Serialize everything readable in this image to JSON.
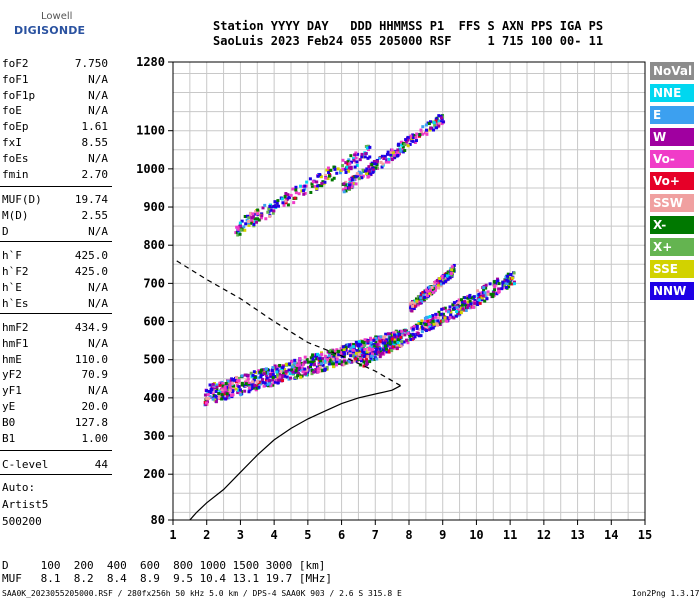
{
  "logo": {
    "line1": "Lowell",
    "line2": "DIGISONDE"
  },
  "header": {
    "line1": "Station YYYY DAY   DDD HHMMSS P1  FFS S AXN PPS IGA PS",
    "line2": "SaoLuis 2023 Feb24 055 205000 RSF     1 715 100 00- 11"
  },
  "params": [
    {
      "name": "foF2",
      "value": "7.750"
    },
    {
      "name": "foF1",
      "value": "N/A"
    },
    {
      "name": "foF1p",
      "value": "N/A"
    },
    {
      "name": "foE",
      "value": "N/A"
    },
    {
      "name": "foEp",
      "value": "1.61"
    },
    {
      "name": "fxI",
      "value": "8.55"
    },
    {
      "name": "foEs",
      "value": "N/A"
    },
    {
      "name": "fmin",
      "value": "2.70"
    },
    {
      "name": "MUF(D)",
      "value": "19.74"
    },
    {
      "name": "M(D)",
      "value": "2.55"
    },
    {
      "name": "D",
      "value": "N/A"
    },
    {
      "name": "h`F",
      "value": "425.0"
    },
    {
      "name": "h`F2",
      "value": "425.0"
    },
    {
      "name": "h`E",
      "value": "N/A"
    },
    {
      "name": "h`Es",
      "value": "N/A"
    },
    {
      "name": "hmF2",
      "value": "434.9"
    },
    {
      "name": "hmF1",
      "value": "N/A"
    },
    {
      "name": "hmE",
      "value": "110.0"
    },
    {
      "name": "yF2",
      "value": "70.9"
    },
    {
      "name": "yF1",
      "value": "N/A"
    },
    {
      "name": "yE",
      "value": "20.0"
    },
    {
      "name": "B0",
      "value": "127.8"
    },
    {
      "name": "B1",
      "value": "1.00"
    },
    {
      "name": "C-level",
      "value": "44"
    }
  ],
  "autoscaling": {
    "line1": "Auto:",
    "line2": "Artist5",
    "line3": "500200"
  },
  "legend": [
    {
      "label": "NoVal",
      "color": "#8c8c8c"
    },
    {
      "label": "NNE",
      "color": "#00d7f0"
    },
    {
      "label": "E",
      "color": "#3ca0f0"
    },
    {
      "label": "W",
      "color": "#a000a0"
    },
    {
      "label": "Vo-",
      "color": "#f03cc8"
    },
    {
      "label": "Vo+",
      "color": "#e60028"
    },
    {
      "label": "SSW",
      "color": "#f0a0a0"
    },
    {
      "label": "X-",
      "color": "#007800"
    },
    {
      "label": "X+",
      "color": "#64b450"
    },
    {
      "label": "SSE",
      "color": "#d2d200"
    },
    {
      "label": "NNW",
      "color": "#1e00e6"
    }
  ],
  "footer": {
    "d_label": "D",
    "d_values": " 100  200  400  600  800 1000 1500 3000 [km]",
    "muf_label": "MUF",
    "muf_values": " 8.1  8.2  8.4  8.9  9.5 10.4 13.1 19.7 [MHz]",
    "file_info": "SAA0K_2023055205000.RSF / 280fx256h 50 kHz 5.0 km / DPS-4 SAA0K 903 / 2.6 S 315.8 E",
    "version": "Ion2Png 1.3.17"
  },
  "chart_data": {
    "type": "scatter",
    "x_ticks": [
      "1",
      "2",
      "3",
      "4",
      "5",
      "6",
      "7",
      "8",
      "9",
      "10",
      "11",
      "12",
      "13",
      "14",
      "15"
    ],
    "y_ticks": [
      "80",
      "200",
      "300",
      "400",
      "500",
      "600",
      "700",
      "800",
      "900",
      "1000",
      "1100",
      "1280"
    ],
    "xlim": [
      1,
      15
    ],
    "ylim": [
      80,
      1280
    ],
    "grid": true,
    "traces": [
      {
        "band": "F2 ordinary",
        "x_from": 1.9,
        "x_to": 7.75,
        "h_from": 410,
        "h_to": 560
      },
      {
        "band": "F2 extraordinary",
        "x_from": 6.5,
        "x_to": 11.1,
        "h_from": 500,
        "h_to": 720
      },
      {
        "band": "F2 upper",
        "x_from": 8.0,
        "x_to": 9.3,
        "h_from": 640,
        "h_to": 740
      },
      {
        "band": "multi-hop",
        "x_from": 2.8,
        "x_to": 6.8,
        "h_from": 845,
        "h_to": 1050
      },
      {
        "band": "multi-hop 2",
        "x_from": 6.0,
        "x_to": 9.0,
        "h_from": 950,
        "h_to": 1140
      }
    ],
    "profile": [
      [
        1.5,
        80
      ],
      [
        1.6,
        90
      ],
      [
        1.7,
        100
      ],
      [
        2.0,
        125
      ],
      [
        2.5,
        160
      ],
      [
        3.0,
        205
      ],
      [
        3.5,
        250
      ],
      [
        4.0,
        290
      ],
      [
        4.5,
        320
      ],
      [
        5.0,
        345
      ],
      [
        5.5,
        365
      ],
      [
        6.0,
        385
      ],
      [
        6.5,
        400
      ],
      [
        7.0,
        410
      ],
      [
        7.5,
        420
      ],
      [
        7.75,
        432
      ]
    ],
    "profile_extrapolated": [
      [
        7.75,
        432
      ],
      [
        7.0,
        470
      ],
      [
        6.0,
        510
      ],
      [
        5.0,
        545
      ],
      [
        4.0,
        600
      ],
      [
        3.0,
        660
      ],
      [
        2.0,
        710
      ],
      [
        1.0,
        765
      ]
    ]
  }
}
